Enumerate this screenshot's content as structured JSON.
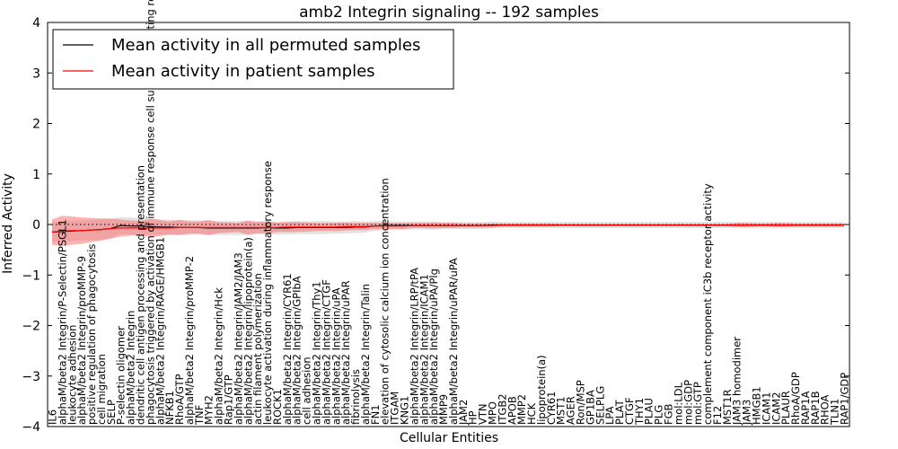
{
  "chart_data": {
    "type": "line",
    "title": "amb2 Integrin signaling -- 192 samples",
    "xlabel": "Cellular Entities",
    "ylabel": "Inferred Activity",
    "ylim": [
      -4,
      4
    ],
    "yticks": [
      -4,
      -3,
      -2,
      -1,
      0,
      1,
      2,
      3,
      4
    ],
    "grid": false,
    "legend_position": "top-left",
    "categories": [
      "IL6",
      "alphaM/beta2 Integrin/P-Selectin/PSGL1",
      "leukocyte adhesion",
      "alphaM/beta2 Integrin/proMMP-9",
      "positive regulation of phagocytosis",
      "cell migration",
      "SELP",
      "P-selectin oligomer",
      "alphaM/beta2 Integrin",
      "dendritic cell antigen processing and presentation",
      "phagocytosis triggered by activation of immune response cell surface activating receptor",
      "alphaM/beta2 Integrin/RAGE/HMGB1",
      "NFKB1",
      "RhoA/GTP",
      "alphaM/beta2 Integrin/proMMP-2",
      "TNF",
      "MYH2",
      "alphaM/beta2 Integrin/Hck",
      "Rap1/GTP",
      "alphaM/beta2 Integrin/JAM2/JAM3",
      "alphaM/beta2 Integrin/lipoprotein(a)",
      "actin filament polymerization",
      "leukocyte activation during inflammatory response",
      "ROCK1",
      "alphaM/beta2 Integrin/CYR61",
      "alphaM/beta2 Integrin/GPIbA",
      "cell adhesion",
      "alphaM/beta2 Integrin/Thy1",
      "alphaM/beta2 Integrin/CTGF",
      "alphaM/beta2 Integrin/uPA",
      "alphaM/beta2 Integrin/uPAR",
      "fibrinolysis",
      "alphaM/beta2 Integrin/Talin",
      "FN1",
      "elevation of cytosolic calcium ion concentration",
      "ITGAM",
      "KNG1",
      "alphaM/beta2 Integrin/LRP/tPA",
      "alphaM/beta2 Integrin/ICAM1",
      "alphaM/beta2 Integrin/uPA/Plg",
      "MMP9",
      "alphaM/beta2 Integrin/uPAR/uPA",
      "JAM2",
      "HP",
      "VTN",
      "MPO",
      "ITGB2",
      "APOB",
      "MMP2",
      "HCK",
      "lipoprotein(a)",
      "CYR61",
      "MST1",
      "AGER",
      "Ron/MSP",
      "GP1BA",
      "SELPLG",
      "LPA",
      "PLAT",
      "CTGF",
      "THY1",
      "PLAU",
      "PLG",
      "FGB",
      "mol:LDL",
      "mol:GDP",
      "mol:GTP",
      "complement component iC3b receptor activity",
      "F12",
      "MST1R",
      "JAM3 homodimer",
      "JAM3",
      "HMGB1",
      "ICAM1",
      "ICAM2",
      "PLAUR",
      "RhoA/GDP",
      "RAP1A",
      "RAP1B",
      "RHOA",
      "TLN1",
      "RAP1/GDP"
    ],
    "series": [
      {
        "name": "Mean activity in all permuted samples",
        "color": "#000000",
        "values": [
          -0.15,
          -0.14,
          -0.13,
          -0.12,
          -0.11,
          -0.1,
          -0.08,
          -0.02,
          -0.03,
          -0.03,
          -0.04,
          -0.05,
          -0.05,
          -0.06,
          -0.06,
          -0.06,
          -0.07,
          -0.07,
          -0.07,
          -0.07,
          -0.07,
          -0.07,
          -0.06,
          -0.07,
          -0.07,
          -0.06,
          -0.06,
          -0.06,
          -0.06,
          -0.06,
          -0.06,
          -0.05,
          -0.05,
          -0.03,
          -0.02,
          -0.02,
          -0.02,
          -0.02,
          -0.02,
          -0.02,
          -0.02,
          -0.02,
          -0.02,
          -0.02,
          -0.02,
          -0.01,
          -0.01,
          -0.01,
          -0.01,
          -0.01,
          -0.01,
          -0.01,
          -0.01,
          -0.01,
          -0.01,
          -0.01,
          -0.01,
          -0.01,
          -0.01,
          -0.01,
          -0.01,
          -0.01,
          -0.01,
          -0.01,
          -0.01,
          -0.01,
          -0.01,
          -0.01,
          -0.01,
          -0.01,
          -0.01,
          -0.01,
          -0.01,
          -0.01,
          -0.01,
          -0.01,
          -0.01,
          -0.01,
          -0.01,
          -0.01,
          -0.01,
          -0.01
        ],
        "band": [
          0.2,
          0.2,
          0.2,
          0.2,
          0.2,
          0.2,
          0.19,
          0.17,
          0.17,
          0.16,
          0.16,
          0.15,
          0.15,
          0.15,
          0.15,
          0.14,
          0.14,
          0.14,
          0.14,
          0.14,
          0.14,
          0.13,
          0.13,
          0.13,
          0.13,
          0.13,
          0.13,
          0.13,
          0.13,
          0.12,
          0.12,
          0.12,
          0.11,
          0.1,
          0.09,
          0.08,
          0.08,
          0.08,
          0.08,
          0.08,
          0.07,
          0.07,
          0.07,
          0.07,
          0.07,
          0.07,
          0.06,
          0.06,
          0.06,
          0.06,
          0.06,
          0.06,
          0.06,
          0.06,
          0.06,
          0.06,
          0.06,
          0.06,
          0.06,
          0.06,
          0.06,
          0.06,
          0.06,
          0.06,
          0.06,
          0.06,
          0.06,
          0.06,
          0.06,
          0.06,
          0.06,
          0.06,
          0.06,
          0.06,
          0.06,
          0.06,
          0.06,
          0.06,
          0.06,
          0.06,
          0.06,
          0.06
        ]
      },
      {
        "name": "Mean activity in patient samples",
        "color": "#ff0000",
        "values": [
          -0.15,
          -0.13,
          -0.12,
          -0.12,
          -0.11,
          -0.1,
          -0.08,
          -0.07,
          -0.07,
          -0.07,
          -0.07,
          -0.07,
          -0.07,
          -0.06,
          -0.06,
          -0.06,
          -0.06,
          -0.06,
          -0.06,
          -0.06,
          -0.06,
          -0.06,
          -0.06,
          -0.06,
          -0.05,
          -0.05,
          -0.05,
          -0.05,
          -0.05,
          -0.05,
          -0.04,
          -0.04,
          -0.04,
          -0.03,
          -0.03,
          -0.03,
          -0.03,
          -0.02,
          -0.02,
          -0.02,
          -0.02,
          -0.02,
          -0.02,
          -0.02,
          -0.02,
          -0.02,
          -0.01,
          -0.01,
          -0.01,
          -0.01,
          -0.01,
          -0.01,
          -0.01,
          -0.01,
          -0.01,
          -0.01,
          -0.01,
          -0.01,
          -0.01,
          -0.01,
          -0.01,
          -0.01,
          -0.01,
          -0.01,
          -0.01,
          -0.01,
          -0.01,
          -0.01,
          -0.01,
          -0.01,
          -0.01,
          -0.01,
          -0.01,
          -0.01,
          -0.01,
          -0.01,
          -0.01,
          -0.01,
          -0.01,
          -0.01,
          -0.01,
          -0.01
        ],
        "band": [
          0.25,
          0.3,
          0.28,
          0.26,
          0.24,
          0.22,
          0.2,
          0.17,
          0.15,
          0.14,
          0.18,
          0.16,
          0.13,
          0.15,
          0.12,
          0.12,
          0.15,
          0.11,
          0.1,
          0.09,
          0.14,
          0.11,
          0.12,
          0.09,
          0.1,
          0.1,
          0.09,
          0.08,
          0.08,
          0.08,
          0.08,
          0.07,
          0.07,
          0.06,
          0.06,
          0.06,
          0.06,
          0.05,
          0.05,
          0.06,
          0.05,
          0.05,
          0.04,
          0.04,
          0.04,
          0.04,
          0.03,
          0.03,
          0.03,
          0.03,
          0.03,
          0.03,
          0.02,
          0.02,
          0.02,
          0.02,
          0.02,
          0.02,
          0.02,
          0.02,
          0.02,
          0.02,
          0.02,
          0.02,
          0.02,
          0.02,
          0.02,
          0.02,
          0.02,
          0.02,
          0.04,
          0.04,
          0.03,
          0.03,
          0.04,
          0.04,
          0.03,
          0.03,
          0.03,
          0.03,
          0.03,
          0.03
        ]
      }
    ]
  }
}
